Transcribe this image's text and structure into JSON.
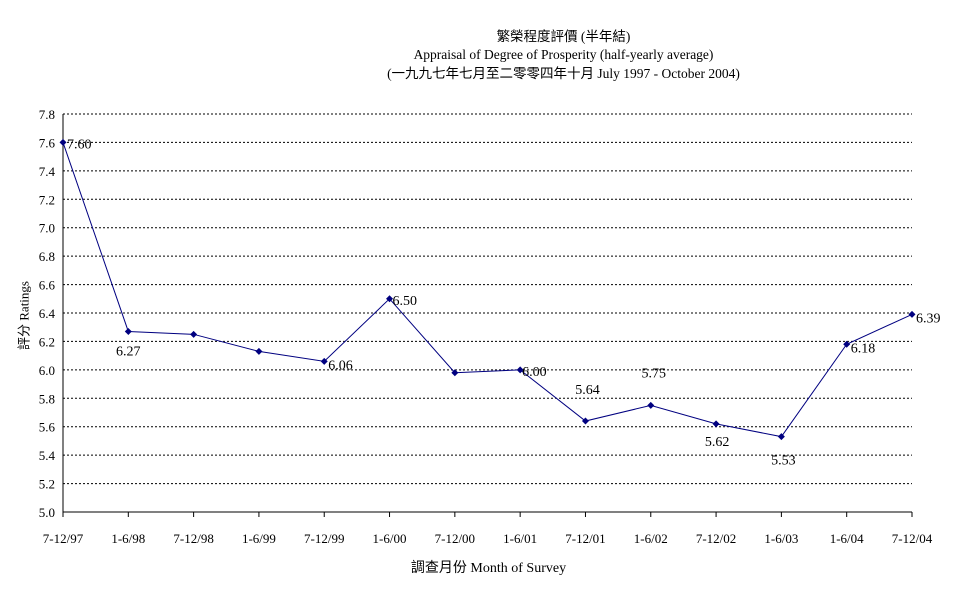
{
  "chart_data": {
    "type": "line",
    "title": "繁榮程度評價 (半年結)",
    "subtitle": "Appraisal of Degree of Prosperity (half-yearly average)",
    "subtitle2": "(一九九七年七月至二零零四年十月 July 1997 - October 2004)",
    "xlabel": "調查月份 Month of Survey",
    "ylabel": "評分 Ratings",
    "ylim": [
      5.0,
      7.8
    ],
    "yticks": [
      "5.0",
      "5.2",
      "5.4",
      "5.6",
      "5.8",
      "6.0",
      "6.2",
      "6.4",
      "6.6",
      "6.8",
      "7.0",
      "7.2",
      "7.4",
      "7.6",
      "7.8"
    ],
    "grid": true,
    "line_color": "#000080",
    "categories": [
      "7-12/97",
      "1-6/98",
      "7-12/98",
      "1-6/99",
      "7-12/99",
      "1-6/00",
      "7-12/00",
      "1-6/01",
      "7-12/01",
      "1-6/02",
      "7-12/02",
      "1-6/03",
      "1-6/04",
      "7-12/04"
    ],
    "values": [
      7.6,
      6.27,
      6.25,
      6.13,
      6.06,
      6.5,
      5.98,
      6.0,
      5.64,
      5.75,
      5.62,
      5.53,
      6.18,
      6.39
    ],
    "data_labels": [
      "7.60",
      "6.27",
      "",
      "",
      "6.06",
      "6.50",
      "",
      "6.00",
      "5.64",
      "5.75",
      "5.62",
      "5.53",
      "6.18",
      "6.39"
    ]
  }
}
